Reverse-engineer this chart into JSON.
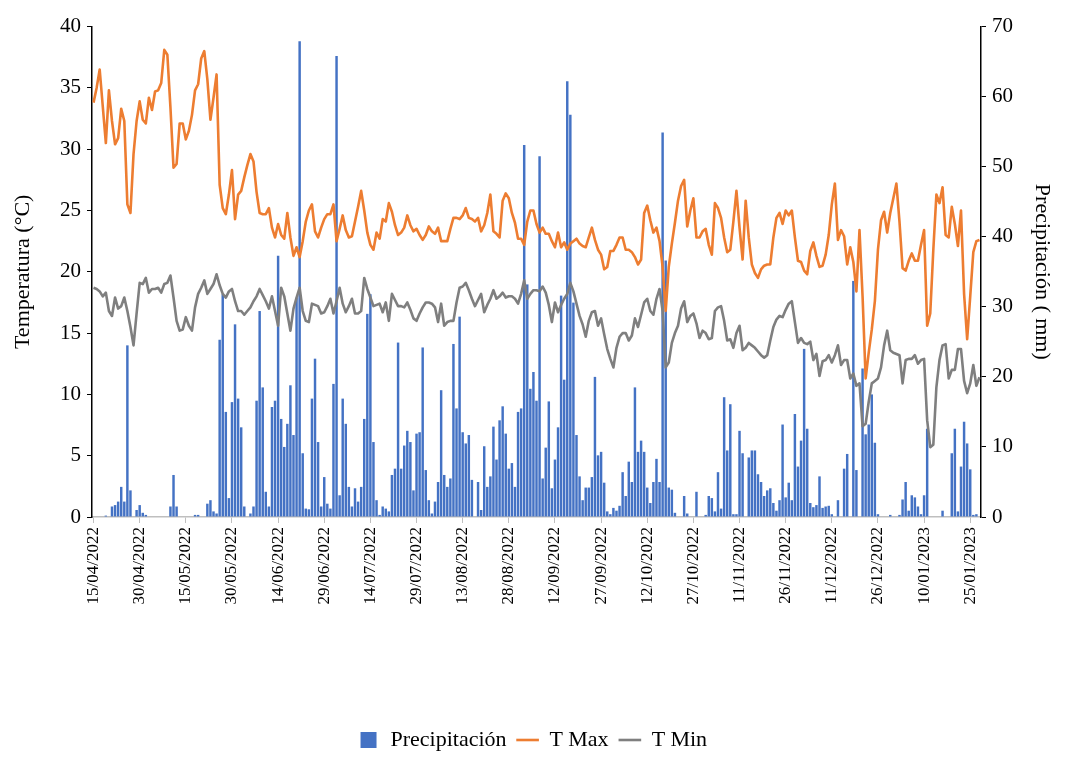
{
  "chart_data": {
    "type": "bar",
    "ylabel": "Temperatura (°C)",
    "y2label": "Precipitación ( mm)",
    "ylim": [
      0,
      40
    ],
    "yticks": [
      0,
      5,
      10,
      15,
      20,
      25,
      30,
      35,
      40
    ],
    "y2lim": [
      0,
      70
    ],
    "y2ticks": [
      0,
      10,
      20,
      30,
      40,
      50,
      60,
      70
    ],
    "grid": false,
    "legend": "bottom",
    "marker": "none",
    "categories": [
      "15/04/2022",
      null,
      null,
      null,
      null,
      null,
      null,
      null,
      null,
      null,
      null,
      null,
      null,
      null,
      null,
      "30/04/2022",
      null,
      null,
      null,
      null,
      null,
      null,
      null,
      null,
      null,
      null,
      null,
      null,
      null,
      null,
      "15/05/2022",
      null,
      null,
      null,
      null,
      null,
      null,
      null,
      null,
      null,
      null,
      null,
      null,
      null,
      null,
      "30/05/2022",
      null,
      null,
      null,
      null,
      null,
      null,
      null,
      null,
      null,
      null,
      null,
      null,
      null,
      null,
      "14/06/2022",
      null,
      null,
      null,
      null,
      null,
      null,
      null,
      null,
      null,
      null,
      null,
      null,
      null,
      null,
      "29/06/2022",
      null,
      null,
      null,
      null,
      null,
      null,
      null,
      null,
      null,
      null,
      null,
      null,
      null,
      null,
      "14/07/2022",
      null,
      null,
      null,
      null,
      null,
      null,
      null,
      null,
      null,
      null,
      null,
      null,
      null,
      null,
      "29/07/2022",
      null,
      null,
      null,
      null,
      null,
      null,
      null,
      null,
      null,
      null,
      null,
      null,
      null,
      null,
      "13/08/2022",
      null,
      null,
      null,
      null,
      null,
      null,
      null,
      null,
      null,
      null,
      null,
      null,
      null,
      null,
      "28/08/2022",
      null,
      null,
      null,
      null,
      null,
      null,
      null,
      null,
      null,
      null,
      null,
      null,
      null,
      null,
      "12/09/2022",
      null,
      null,
      null,
      null,
      null,
      null,
      null,
      null,
      null,
      null,
      null,
      null,
      null,
      null,
      "27/09/2022",
      null,
      null,
      null,
      null,
      null,
      null,
      null,
      null,
      null,
      null,
      null,
      null,
      null,
      null,
      "12/10/2022",
      null,
      null,
      null,
      null,
      null,
      null,
      null,
      null,
      null,
      null,
      null,
      null,
      null,
      null,
      "27/10/2022",
      null,
      null,
      null,
      null,
      null,
      null,
      null,
      null,
      null,
      null,
      null,
      null,
      null,
      null,
      "11/11/2022",
      null,
      null,
      null,
      null,
      null,
      null,
      null,
      null,
      null,
      null,
      null,
      null,
      null,
      null,
      "26/11/2022",
      null,
      null,
      null,
      null,
      null,
      null,
      null,
      null,
      null,
      null,
      null,
      null,
      null,
      null,
      "11/12/2022",
      null,
      null,
      null,
      null,
      null,
      null,
      null,
      null,
      null,
      null,
      null,
      null,
      null,
      null,
      "26/12/2022",
      null,
      null,
      null,
      null,
      null,
      null,
      null,
      null,
      null,
      null,
      null,
      null,
      null,
      null,
      "10/01/2023",
      null,
      null,
      null,
      null,
      null,
      null,
      null,
      null,
      null,
      null,
      null,
      null,
      null,
      null,
      "25/01/2023",
      null,
      null,
      null
    ],
    "series": [
      {
        "name": "Precipitación",
        "type": "bar",
        "axis": "y2",
        "color": "#4472c4",
        "values": [
          0,
          0,
          0,
          0,
          0.2,
          0,
          1.5,
          1.7,
          2.2,
          4.3,
          2.2,
          24.5,
          3.8,
          0,
          1.0,
          1.7,
          0.6,
          0.3,
          0,
          0,
          0,
          0,
          0,
          0,
          0,
          1.5,
          6.0,
          1.5,
          0,
          0,
          0,
          0,
          0,
          0.3,
          0.3,
          0,
          0,
          1.9,
          2.4,
          0.8,
          0.5,
          25.3,
          31.8,
          15.0,
          2.7,
          16.4,
          27.5,
          16.9,
          12.8,
          1.5,
          0,
          0.5,
          1.5,
          16.6,
          29.4,
          18.5,
          3.6,
          1.5,
          15.7,
          16.6,
          37.3,
          14.0,
          10.0,
          13.3,
          18.8,
          11.7,
          31.3,
          67.9,
          9.1,
          1.2,
          1.1,
          16.9,
          22.6,
          10.7,
          1.5,
          5.7,
          1.9,
          1.2,
          19.0,
          65.8,
          3.1,
          16.9,
          13.3,
          4.3,
          1.5,
          4.1,
          2.2,
          4.3,
          14.0,
          29.0,
          31.8,
          10.7,
          2.4,
          0.3,
          1.5,
          1.2,
          0.8,
          6.0,
          6.9,
          24.9,
          6.9,
          10.2,
          12.3,
          10.7,
          3.8,
          11.9,
          12.1,
          24.2,
          6.7,
          2.4,
          0.5,
          2.2,
          5.0,
          18.1,
          6.0,
          4.3,
          5.5,
          24.7,
          15.5,
          28.6,
          12.1,
          10.5,
          11.7,
          5.3,
          0,
          5.0,
          1.0,
          10.1,
          4.3,
          5.8,
          12.9,
          8.2,
          13.8,
          15.8,
          11.9,
          6.9,
          7.7,
          4.3,
          15.0,
          15.5,
          53.1,
          33.2,
          18.3,
          20.7,
          16.6,
          51.5,
          5.5,
          9.9,
          16.5,
          4.1,
          8.2,
          12.8,
          31.6,
          19.6,
          62.2,
          57.4,
          30.6,
          11.7,
          5.8,
          2.4,
          4.2,
          4.2,
          5.7,
          20.0,
          8.8,
          9.3,
          4.9,
          0.8,
          0.4,
          1.3,
          0.9,
          1.6,
          6.4,
          3.0,
          7.9,
          5.0,
          18.5,
          9.3,
          10.9,
          9.3,
          4.2,
          2.0,
          5.0,
          8.3,
          5.0,
          54.9,
          36.6,
          4.2,
          3.9,
          0.6,
          0,
          0,
          3.0,
          0.5,
          0,
          0,
          3.6,
          0,
          0,
          0.3,
          3.0,
          2.7,
          0.8,
          6.4,
          1.2,
          17.1,
          9.5,
          16.1,
          0.4,
          0.4,
          12.3,
          9.1,
          0,
          8.5,
          9.5,
          9.5,
          6.1,
          5.0,
          3.0,
          3.8,
          4.1,
          2.0,
          0.9,
          2.4,
          13.2,
          2.8,
          4.9,
          2.4,
          14.7,
          7.2,
          10.9,
          24.0,
          12.6,
          2.0,
          1.4,
          1.7,
          5.8,
          1.3,
          1.5,
          1.6,
          0.4,
          0,
          2.4,
          0,
          6.9,
          9.0,
          0,
          33.7,
          6.7,
          0,
          21.2,
          11.8,
          13.2,
          17.5,
          10.6,
          0.4,
          0,
          0,
          0,
          0.3,
          0,
          0,
          0.3,
          2.5,
          5.0,
          0.9,
          3.1,
          2.8,
          1.5,
          0.4,
          3.1,
          12.6,
          0,
          0,
          0,
          0,
          0.9,
          0,
          0,
          9.1,
          12.6,
          0.8,
          7.2,
          13.6,
          10.5,
          6.8,
          0.3,
          0.4,
          0
        ]
      },
      {
        "name": "T Max",
        "type": "line",
        "color": "#ed7d31",
        "values": [
          33.8,
          35.0,
          36.5,
          33.5,
          30.5,
          34.8,
          32.3,
          30.4,
          30.9,
          33.3,
          32.3,
          25.5,
          24.8,
          29.6,
          32.3,
          33.9,
          32.4,
          32.1,
          34.2,
          33.2,
          34.7,
          34.8,
          35.4,
          38.1,
          37.7,
          33.4,
          28.5,
          28.8,
          32.1,
          32.1,
          30.8,
          31.5,
          32.8,
          34.8,
          35.3,
          37.4,
          38.0,
          35.7,
          32.4,
          34.2,
          36.1,
          27.1,
          25.2,
          24.7,
          26.3,
          28.3,
          24.3,
          26.3,
          26.6,
          27.7,
          28.7,
          29.6,
          29.0,
          26.5,
          24.8,
          24.7,
          24.7,
          25.2,
          23.6,
          22.8,
          23.9,
          23.0,
          22.7,
          24.8,
          22.8,
          21.3,
          22.0,
          21.2,
          22.5,
          24.1,
          25.0,
          25.5,
          23.3,
          22.8,
          23.6,
          24.3,
          24.7,
          24.7,
          25.5,
          22.5,
          23.5,
          24.6,
          23.4,
          22.8,
          22.9,
          24.1,
          25.3,
          26.6,
          25.0,
          23.2,
          22.2,
          21.8,
          23.2,
          22.7,
          24.3,
          24.1,
          25.6,
          24.9,
          23.8,
          23.0,
          23.2,
          23.6,
          24.6,
          23.8,
          23.3,
          23.5,
          23.0,
          22.6,
          23.0,
          23.7,
          23.3,
          23.1,
          23.6,
          22.5,
          22.5,
          22.5,
          23.5,
          24.4,
          24.4,
          24.3,
          24.6,
          25.2,
          24.4,
          24.3,
          24.1,
          24.4,
          23.3,
          23.8,
          24.8,
          26.3,
          23.3,
          23.1,
          22.8,
          25.8,
          26.4,
          26.0,
          24.8,
          24.0,
          22.7,
          22.7,
          22.2,
          24.1,
          25.0,
          25.0,
          23.9,
          23.2,
          23.6,
          23.1,
          23.1,
          22.5,
          22.0,
          23.2,
          22.0,
          22.4,
          21.8,
          22.3,
          22.5,
          22.7,
          22.3,
          22.1,
          22.0,
          22.8,
          23.6,
          22.6,
          21.8,
          21.4,
          20.2,
          20.4,
          21.7,
          21.7,
          22.2,
          22.8,
          22.8,
          21.8,
          21.8,
          21.6,
          21.2,
          20.6,
          21.0,
          24.8,
          25.4,
          24.2,
          23.2,
          23.6,
          22.5,
          20.4,
          16.8,
          20.4,
          22.3,
          24.0,
          25.8,
          27.0,
          27.5,
          23.7,
          25.0,
          26.0,
          22.8,
          22.8,
          23.3,
          23.5,
          22.2,
          21.4,
          25.6,
          25.2,
          24.4,
          22.8,
          21.6,
          21.8,
          24.1,
          26.6,
          23.6,
          21.0,
          25.8,
          22.8,
          20.6,
          19.9,
          19.5,
          20.2,
          20.5,
          20.6,
          20.6,
          22.8,
          24.4,
          24.8,
          23.9,
          25.0,
          24.6,
          25.0,
          22.8,
          20.9,
          20.8,
          20.1,
          19.8,
          21.7,
          22.4,
          21.3,
          20.4,
          20.5,
          21.4,
          23.0,
          25.5,
          27.2,
          22.6,
          23.4,
          22.9,
          20.6,
          22.0,
          20.8,
          18.4,
          23.4,
          18.0,
          11.3,
          13.4,
          15.3,
          17.6,
          21.8,
          24.2,
          24.9,
          23.2,
          24.8,
          26.0,
          27.2,
          24.1,
          20.3,
          20.1,
          20.9,
          21.5,
          20.9,
          20.9,
          22.2,
          23.4,
          15.6,
          16.6,
          21.8,
          26.3,
          25.6,
          26.9,
          23.0,
          22.8,
          25.3,
          23.9,
          22.1,
          25.0,
          18.2,
          14.5,
          18.0,
          21.6,
          22.5,
          22.6
        ]
      },
      {
        "name": "T Min",
        "type": "line",
        "color": "#7f7f7f",
        "values": [
          18.7,
          18.6,
          18.4,
          18.0,
          18.3,
          16.8,
          16.4,
          17.9,
          17.0,
          17.2,
          17.9,
          16.8,
          15.5,
          14.0,
          16.6,
          19.1,
          19.0,
          19.5,
          18.3,
          18.6,
          18.6,
          18.7,
          18.3,
          19.0,
          19.1,
          19.7,
          17.9,
          16.0,
          15.2,
          15.3,
          16.3,
          15.6,
          15.2,
          17.1,
          18.2,
          18.7,
          19.3,
          18.2,
          18.6,
          19.0,
          19.8,
          18.9,
          18.2,
          17.9,
          18.4,
          18.6,
          17.6,
          16.8,
          16.8,
          16.5,
          16.8,
          17.1,
          17.6,
          18.0,
          18.6,
          18.1,
          17.6,
          17.0,
          18.0,
          16.8,
          15.6,
          18.7,
          18.0,
          16.6,
          15.2,
          17.0,
          17.9,
          18.7,
          16.8,
          16.0,
          15.9,
          17.4,
          17.3,
          17.2,
          16.6,
          16.7,
          17.2,
          17.8,
          16.6,
          17.6,
          18.7,
          17.4,
          16.7,
          17.2,
          17.8,
          16.6,
          16.6,
          16.8,
          19.5,
          18.6,
          17.9,
          17.2,
          17.3,
          17.4,
          16.7,
          17.5,
          16.0,
          18.2,
          17.7,
          17.2,
          17.2,
          17.1,
          17.5,
          16.9,
          16.2,
          16.0,
          16.6,
          17.1,
          17.5,
          17.5,
          17.4,
          17.1,
          15.9,
          17.4,
          15.6,
          15.9,
          16.0,
          16.0,
          17.5,
          18.7,
          18.8,
          19.1,
          18.5,
          17.8,
          17.2,
          17.7,
          18.2,
          16.7,
          17.3,
          17.8,
          18.5,
          17.8,
          18.0,
          18.3,
          17.9,
          18.0,
          18.0,
          17.8,
          17.4,
          18.2,
          19.3,
          17.8,
          18.2,
          18.5,
          18.5,
          18.4,
          18.8,
          18.3,
          17.3,
          15.9,
          17.5,
          16.7,
          17.3,
          17.8,
          18.2,
          19.1,
          18.4,
          17.4,
          16.4,
          15.7,
          14.7,
          16.0,
          16.7,
          16.8,
          15.6,
          16.2,
          14.9,
          13.7,
          12.9,
          12.2,
          13.8,
          14.7,
          15.0,
          15.0,
          14.4,
          14.8,
          16.2,
          15.5,
          16.5,
          17.5,
          17.8,
          16.8,
          16.5,
          17.8,
          18.6,
          16.8,
          12.2,
          12.6,
          14.2,
          15.0,
          15.6,
          17.0,
          17.6,
          15.9,
          16.4,
          16.6,
          15.8,
          14.6,
          15.2,
          15.0,
          14.5,
          14.6,
          16.8,
          17.1,
          17.2,
          16.0,
          14.4,
          14.5,
          13.8,
          15.0,
          15.6,
          13.6,
          13.8,
          14.2,
          14.0,
          13.8,
          13.5,
          13.2,
          13.0,
          13.2,
          14.4,
          15.5,
          16.1,
          16.4,
          16.3,
          16.9,
          17.4,
          17.6,
          15.9,
          14.2,
          14.6,
          14.2,
          14.1,
          14.3,
          12.8,
          13.3,
          11.5,
          12.7,
          12.8,
          13.2,
          12.6,
          13.2,
          14.0,
          12.4,
          12.8,
          12.8,
          11.3,
          11.7,
          10.7,
          10.9,
          7.4,
          7.6,
          9.4,
          10.9,
          11.1,
          11.3,
          12.2,
          14.0,
          15.2,
          13.6,
          13.4,
          13.3,
          13.2,
          10.9,
          12.8,
          12.9,
          12.9,
          13.2,
          12.5,
          12.8,
          12.9,
          7.9,
          5.7,
          5.9,
          10.6,
          12.8,
          14.0,
          14.1,
          11.3,
          12.0,
          12.0,
          13.7,
          13.7,
          11.1,
          10.1,
          10.9,
          12.4,
          10.7,
          11.4
        ]
      }
    ]
  }
}
